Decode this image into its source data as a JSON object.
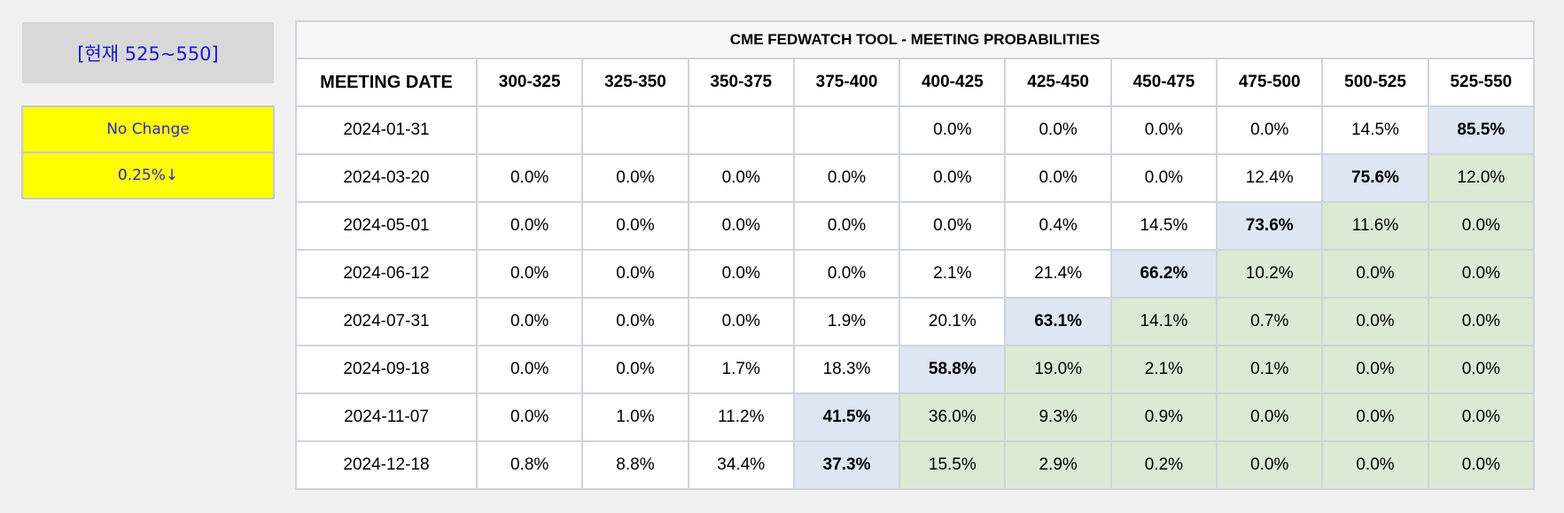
{
  "current_label": "[현재 525~550]",
  "legend": [
    {
      "label": "No Change"
    },
    {
      "label": "0.25%↓"
    }
  ],
  "table": {
    "title": "CME FEDWATCH TOOL - MEETING PROBABILITIES",
    "date_header": "MEETING DATE",
    "rate_headers": [
      "300-325",
      "325-350",
      "350-375",
      "375-400",
      "400-425",
      "425-450",
      "450-475",
      "475-500",
      "500-525",
      "525-550"
    ],
    "rows": [
      {
        "date": "2024-01-31",
        "max_index": 9,
        "cells": [
          "",
          "",
          "",
          "",
          "0.0%",
          "0.0%",
          "0.0%",
          "0.0%",
          "14.5%",
          "85.5%"
        ]
      },
      {
        "date": "2024-03-20",
        "max_index": 8,
        "cells": [
          "0.0%",
          "0.0%",
          "0.0%",
          "0.0%",
          "0.0%",
          "0.0%",
          "0.0%",
          "12.4%",
          "75.6%",
          "12.0%"
        ]
      },
      {
        "date": "2024-05-01",
        "max_index": 7,
        "cells": [
          "0.0%",
          "0.0%",
          "0.0%",
          "0.0%",
          "0.0%",
          "0.4%",
          "14.5%",
          "73.6%",
          "11.6%",
          "0.0%"
        ]
      },
      {
        "date": "2024-06-12",
        "max_index": 6,
        "cells": [
          "0.0%",
          "0.0%",
          "0.0%",
          "0.0%",
          "2.1%",
          "21.4%",
          "66.2%",
          "10.2%",
          "0.0%",
          "0.0%"
        ]
      },
      {
        "date": "2024-07-31",
        "max_index": 5,
        "cells": [
          "0.0%",
          "0.0%",
          "0.0%",
          "1.9%",
          "20.1%",
          "63.1%",
          "14.1%",
          "0.7%",
          "0.0%",
          "0.0%"
        ]
      },
      {
        "date": "2024-09-18",
        "max_index": 4,
        "cells": [
          "0.0%",
          "0.0%",
          "1.7%",
          "18.3%",
          "58.8%",
          "19.0%",
          "2.1%",
          "0.1%",
          "0.0%",
          "0.0%"
        ]
      },
      {
        "date": "2024-11-07",
        "max_index": 3,
        "cells": [
          "0.0%",
          "1.0%",
          "11.2%",
          "41.5%",
          "36.0%",
          "9.3%",
          "0.9%",
          "0.0%",
          "0.0%",
          "0.0%"
        ]
      },
      {
        "date": "2024-12-18",
        "max_index": 3,
        "cells": [
          "0.8%",
          "8.8%",
          "34.4%",
          "37.3%",
          "15.5%",
          "2.9%",
          "0.2%",
          "0.0%",
          "0.0%",
          "0.0%"
        ]
      }
    ]
  },
  "colors": {
    "page_background": "#f1f1f1",
    "current_box": "#d8d8d8",
    "current_text": "#1a1acc",
    "legend_fill": "#ffff00",
    "max_cell": "#dde6f2",
    "higher_rate_cell": "#dcead3",
    "grid_line": "#cfd3da"
  }
}
